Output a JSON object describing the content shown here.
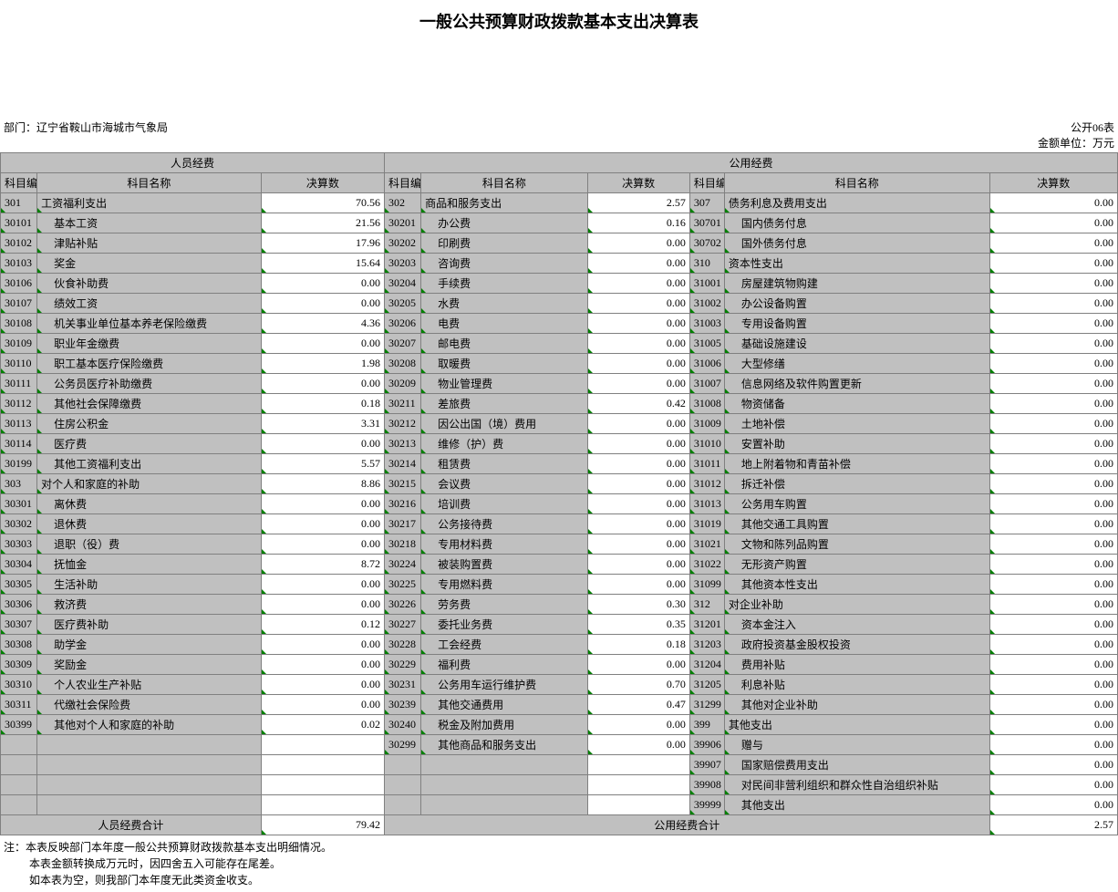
{
  "title": "一般公共预算财政拨款基本支出决算表",
  "form_no": "公开06表",
  "dept_label": "部门：",
  "dept": "辽宁省鞍山市海城市气象局",
  "unit": "金额单位：万元",
  "group_headers": {
    "personnel": "人员经费",
    "public": "公用经费"
  },
  "col_headers": {
    "code": "科目编码",
    "name": "科目名称",
    "value": "决算数"
  },
  "rows": [
    {
      "c1": "301",
      "n1": "工资福利支出",
      "i1": 0,
      "v1": "70.56",
      "c2": "302",
      "n2": "商品和服务支出",
      "i2": 0,
      "v2": "2.57",
      "c3": "307",
      "n3": "债务利息及费用支出",
      "i3": 0,
      "v3": "0.00"
    },
    {
      "c1": "30101",
      "n1": "基本工资",
      "i1": 1,
      "v1": "21.56",
      "c2": "30201",
      "n2": "办公费",
      "i2": 1,
      "v2": "0.16",
      "c3": "30701",
      "n3": "国内债务付息",
      "i3": 1,
      "v3": "0.00"
    },
    {
      "c1": "30102",
      "n1": "津贴补贴",
      "i1": 1,
      "v1": "17.96",
      "c2": "30202",
      "n2": "印刷费",
      "i2": 1,
      "v2": "0.00",
      "c3": "30702",
      "n3": "国外债务付息",
      "i3": 1,
      "v3": "0.00"
    },
    {
      "c1": "30103",
      "n1": "奖金",
      "i1": 1,
      "v1": "15.64",
      "c2": "30203",
      "n2": "咨询费",
      "i2": 1,
      "v2": "0.00",
      "c3": "310",
      "n3": "资本性支出",
      "i3": 0,
      "v3": "0.00"
    },
    {
      "c1": "30106",
      "n1": "伙食补助费",
      "i1": 1,
      "v1": "0.00",
      "c2": "30204",
      "n2": "手续费",
      "i2": 1,
      "v2": "0.00",
      "c3": "31001",
      "n3": "房屋建筑物购建",
      "i3": 1,
      "v3": "0.00"
    },
    {
      "c1": "30107",
      "n1": "绩效工资",
      "i1": 1,
      "v1": "0.00",
      "c2": "30205",
      "n2": "水费",
      "i2": 1,
      "v2": "0.00",
      "c3": "31002",
      "n3": "办公设备购置",
      "i3": 1,
      "v3": "0.00"
    },
    {
      "c1": "30108",
      "n1": "机关事业单位基本养老保险缴费",
      "i1": 1,
      "v1": "4.36",
      "c2": "30206",
      "n2": "电费",
      "i2": 1,
      "v2": "0.00",
      "c3": "31003",
      "n3": "专用设备购置",
      "i3": 1,
      "v3": "0.00"
    },
    {
      "c1": "30109",
      "n1": "职业年金缴费",
      "i1": 1,
      "v1": "0.00",
      "c2": "30207",
      "n2": "邮电费",
      "i2": 1,
      "v2": "0.00",
      "c3": "31005",
      "n3": "基础设施建设",
      "i3": 1,
      "v3": "0.00"
    },
    {
      "c1": "30110",
      "n1": "职工基本医疗保险缴费",
      "i1": 1,
      "v1": "1.98",
      "c2": "30208",
      "n2": "取暖费",
      "i2": 1,
      "v2": "0.00",
      "c3": "31006",
      "n3": "大型修缮",
      "i3": 1,
      "v3": "0.00"
    },
    {
      "c1": "30111",
      "n1": "公务员医疗补助缴费",
      "i1": 1,
      "v1": "0.00",
      "c2": "30209",
      "n2": "物业管理费",
      "i2": 1,
      "v2": "0.00",
      "c3": "31007",
      "n3": "信息网络及软件购置更新",
      "i3": 1,
      "v3": "0.00"
    },
    {
      "c1": "30112",
      "n1": "其他社会保障缴费",
      "i1": 1,
      "v1": "0.18",
      "c2": "30211",
      "n2": "差旅费",
      "i2": 1,
      "v2": "0.42",
      "c3": "31008",
      "n3": "物资储备",
      "i3": 1,
      "v3": "0.00"
    },
    {
      "c1": "30113",
      "n1": "住房公积金",
      "i1": 1,
      "v1": "3.31",
      "c2": "30212",
      "n2": "因公出国（境）费用",
      "i2": 1,
      "v2": "0.00",
      "c3": "31009",
      "n3": "土地补偿",
      "i3": 1,
      "v3": "0.00"
    },
    {
      "c1": "30114",
      "n1": "医疗费",
      "i1": 1,
      "v1": "0.00",
      "c2": "30213",
      "n2": "维修（护）费",
      "i2": 1,
      "v2": "0.00",
      "c3": "31010",
      "n3": "安置补助",
      "i3": 1,
      "v3": "0.00"
    },
    {
      "c1": "30199",
      "n1": "其他工资福利支出",
      "i1": 1,
      "v1": "5.57",
      "c2": "30214",
      "n2": "租赁费",
      "i2": 1,
      "v2": "0.00",
      "c3": "31011",
      "n3": "地上附着物和青苗补偿",
      "i3": 1,
      "v3": "0.00"
    },
    {
      "c1": "303",
      "n1": "对个人和家庭的补助",
      "i1": 0,
      "v1": "8.86",
      "c2": "30215",
      "n2": "会议费",
      "i2": 1,
      "v2": "0.00",
      "c3": "31012",
      "n3": "拆迁补偿",
      "i3": 1,
      "v3": "0.00"
    },
    {
      "c1": "30301",
      "n1": "离休费",
      "i1": 1,
      "v1": "0.00",
      "c2": "30216",
      "n2": "培训费",
      "i2": 1,
      "v2": "0.00",
      "c3": "31013",
      "n3": "公务用车购置",
      "i3": 1,
      "v3": "0.00"
    },
    {
      "c1": "30302",
      "n1": "退休费",
      "i1": 1,
      "v1": "0.00",
      "c2": "30217",
      "n2": "公务接待费",
      "i2": 1,
      "v2": "0.00",
      "c3": "31019",
      "n3": "其他交通工具购置",
      "i3": 1,
      "v3": "0.00"
    },
    {
      "c1": "30303",
      "n1": "退职（役）费",
      "i1": 1,
      "v1": "0.00",
      "c2": "30218",
      "n2": "专用材料费",
      "i2": 1,
      "v2": "0.00",
      "c3": "31021",
      "n3": "文物和陈列品购置",
      "i3": 1,
      "v3": "0.00"
    },
    {
      "c1": "30304",
      "n1": "抚恤金",
      "i1": 1,
      "v1": "8.72",
      "c2": "30224",
      "n2": "被装购置费",
      "i2": 1,
      "v2": "0.00",
      "c3": "31022",
      "n3": "无形资产购置",
      "i3": 1,
      "v3": "0.00"
    },
    {
      "c1": "30305",
      "n1": "生活补助",
      "i1": 1,
      "v1": "0.00",
      "c2": "30225",
      "n2": "专用燃料费",
      "i2": 1,
      "v2": "0.00",
      "c3": "31099",
      "n3": "其他资本性支出",
      "i3": 1,
      "v3": "0.00"
    },
    {
      "c1": "30306",
      "n1": "救济费",
      "i1": 1,
      "v1": "0.00",
      "c2": "30226",
      "n2": "劳务费",
      "i2": 1,
      "v2": "0.30",
      "c3": "312",
      "n3": "对企业补助",
      "i3": 0,
      "v3": "0.00"
    },
    {
      "c1": "30307",
      "n1": "医疗费补助",
      "i1": 1,
      "v1": "0.12",
      "c2": "30227",
      "n2": "委托业务费",
      "i2": 1,
      "v2": "0.35",
      "c3": "31201",
      "n3": "资本金注入",
      "i3": 1,
      "v3": "0.00"
    },
    {
      "c1": "30308",
      "n1": "助学金",
      "i1": 1,
      "v1": "0.00",
      "c2": "30228",
      "n2": "工会经费",
      "i2": 1,
      "v2": "0.18",
      "c3": "31203",
      "n3": "政府投资基金股权投资",
      "i3": 1,
      "v3": "0.00"
    },
    {
      "c1": "30309",
      "n1": "奖励金",
      "i1": 1,
      "v1": "0.00",
      "c2": "30229",
      "n2": "福利费",
      "i2": 1,
      "v2": "0.00",
      "c3": "31204",
      "n3": "费用补贴",
      "i3": 1,
      "v3": "0.00"
    },
    {
      "c1": "30310",
      "n1": "个人农业生产补贴",
      "i1": 1,
      "v1": "0.00",
      "c2": "30231",
      "n2": "公务用车运行维护费",
      "i2": 1,
      "v2": "0.70",
      "c3": "31205",
      "n3": "利息补贴",
      "i3": 1,
      "v3": "0.00"
    },
    {
      "c1": "30311",
      "n1": "代缴社会保险费",
      "i1": 1,
      "v1": "0.00",
      "c2": "30239",
      "n2": "其他交通费用",
      "i2": 1,
      "v2": "0.47",
      "c3": "31299",
      "n3": "其他对企业补助",
      "i3": 1,
      "v3": "0.00"
    },
    {
      "c1": "30399",
      "n1": "其他对个人和家庭的补助",
      "i1": 1,
      "v1": "0.02",
      "c2": "30240",
      "n2": "税金及附加费用",
      "i2": 1,
      "v2": "0.00",
      "c3": "399",
      "n3": "其他支出",
      "i3": 0,
      "v3": "0.00"
    },
    {
      "c1": "",
      "n1": "",
      "i1": 0,
      "v1": "",
      "c2": "30299",
      "n2": "其他商品和服务支出",
      "i2": 1,
      "v2": "0.00",
      "c3": "39906",
      "n3": "赠与",
      "i3": 1,
      "v3": "0.00"
    },
    {
      "c1": "",
      "n1": "",
      "i1": 0,
      "v1": "",
      "c2": "",
      "n2": "",
      "i2": 0,
      "v2": "",
      "c3": "39907",
      "n3": "国家赔偿费用支出",
      "i3": 1,
      "v3": "0.00"
    },
    {
      "c1": "",
      "n1": "",
      "i1": 0,
      "v1": "",
      "c2": "",
      "n2": "",
      "i2": 0,
      "v2": "",
      "c3": "39908",
      "n3": "对民间非营利组织和群众性自治组织补贴",
      "i3": 1,
      "v3": "0.00"
    },
    {
      "c1": "",
      "n1": "",
      "i1": 0,
      "v1": "",
      "c2": "",
      "n2": "",
      "i2": 0,
      "v2": "",
      "c3": "39999",
      "n3": "其他支出",
      "i3": 1,
      "v3": "0.00"
    }
  ],
  "totals": {
    "personnel_label": "人员经费合计",
    "personnel_value": "79.42",
    "public_label": "公用经费合计",
    "public_value": "2.57"
  },
  "notes": [
    "注：本表反映部门本年度一般公共预算财政拨款基本支出明细情况。",
    "本表金额转换成万元时，因四舍五入可能存在尾差。",
    "如本表为空，则我部门本年度无此类资金收支。"
  ],
  "colors": {
    "header_bg": "#c0c0c0",
    "border": "#808080",
    "tick": "#008000",
    "white": "#ffffff"
  }
}
